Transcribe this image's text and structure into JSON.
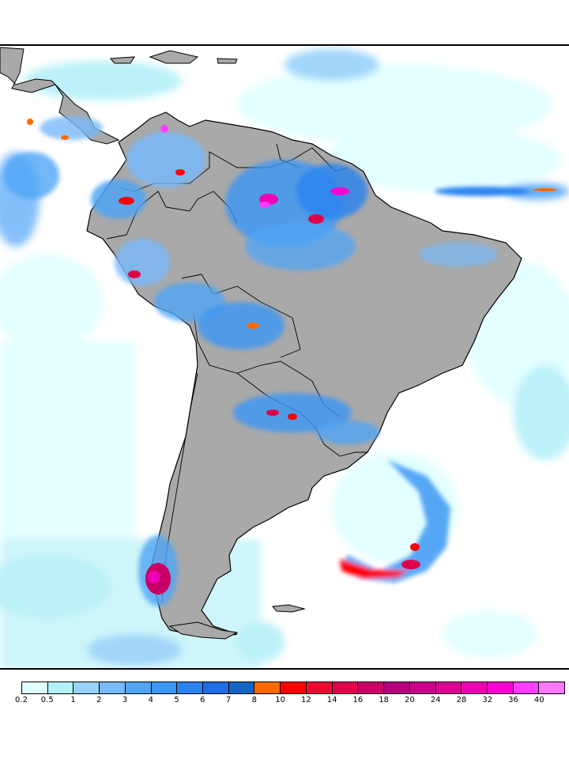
{
  "map": {
    "region": "South America",
    "variable": "precipitation",
    "land_color": "#a9a9a9",
    "ocean_color": "#ffffff",
    "border_color": "#000000"
  },
  "colorbar": {
    "labels": [
      "0.2",
      "0.5",
      "1",
      "2",
      "3",
      "4",
      "5",
      "6",
      "7",
      "8",
      "10",
      "12",
      "14",
      "16",
      "18",
      "20",
      "24",
      "28",
      "32",
      "36",
      "40"
    ],
    "colors": [
      "#e0ffff",
      "#b4f0f8",
      "#96d2fa",
      "#78b9fa",
      "#50a5f5",
      "#3c96f5",
      "#2882f0",
      "#1e6ee6",
      "#1464c8",
      "#ff6a00",
      "#ff0000",
      "#f00a32",
      "#e1004b",
      "#c80064",
      "#b4007d",
      "#c8008c",
      "#dc0096",
      "#f000b4",
      "#ff00d2",
      "#ff3cff",
      "#ff78ff"
    ]
  }
}
